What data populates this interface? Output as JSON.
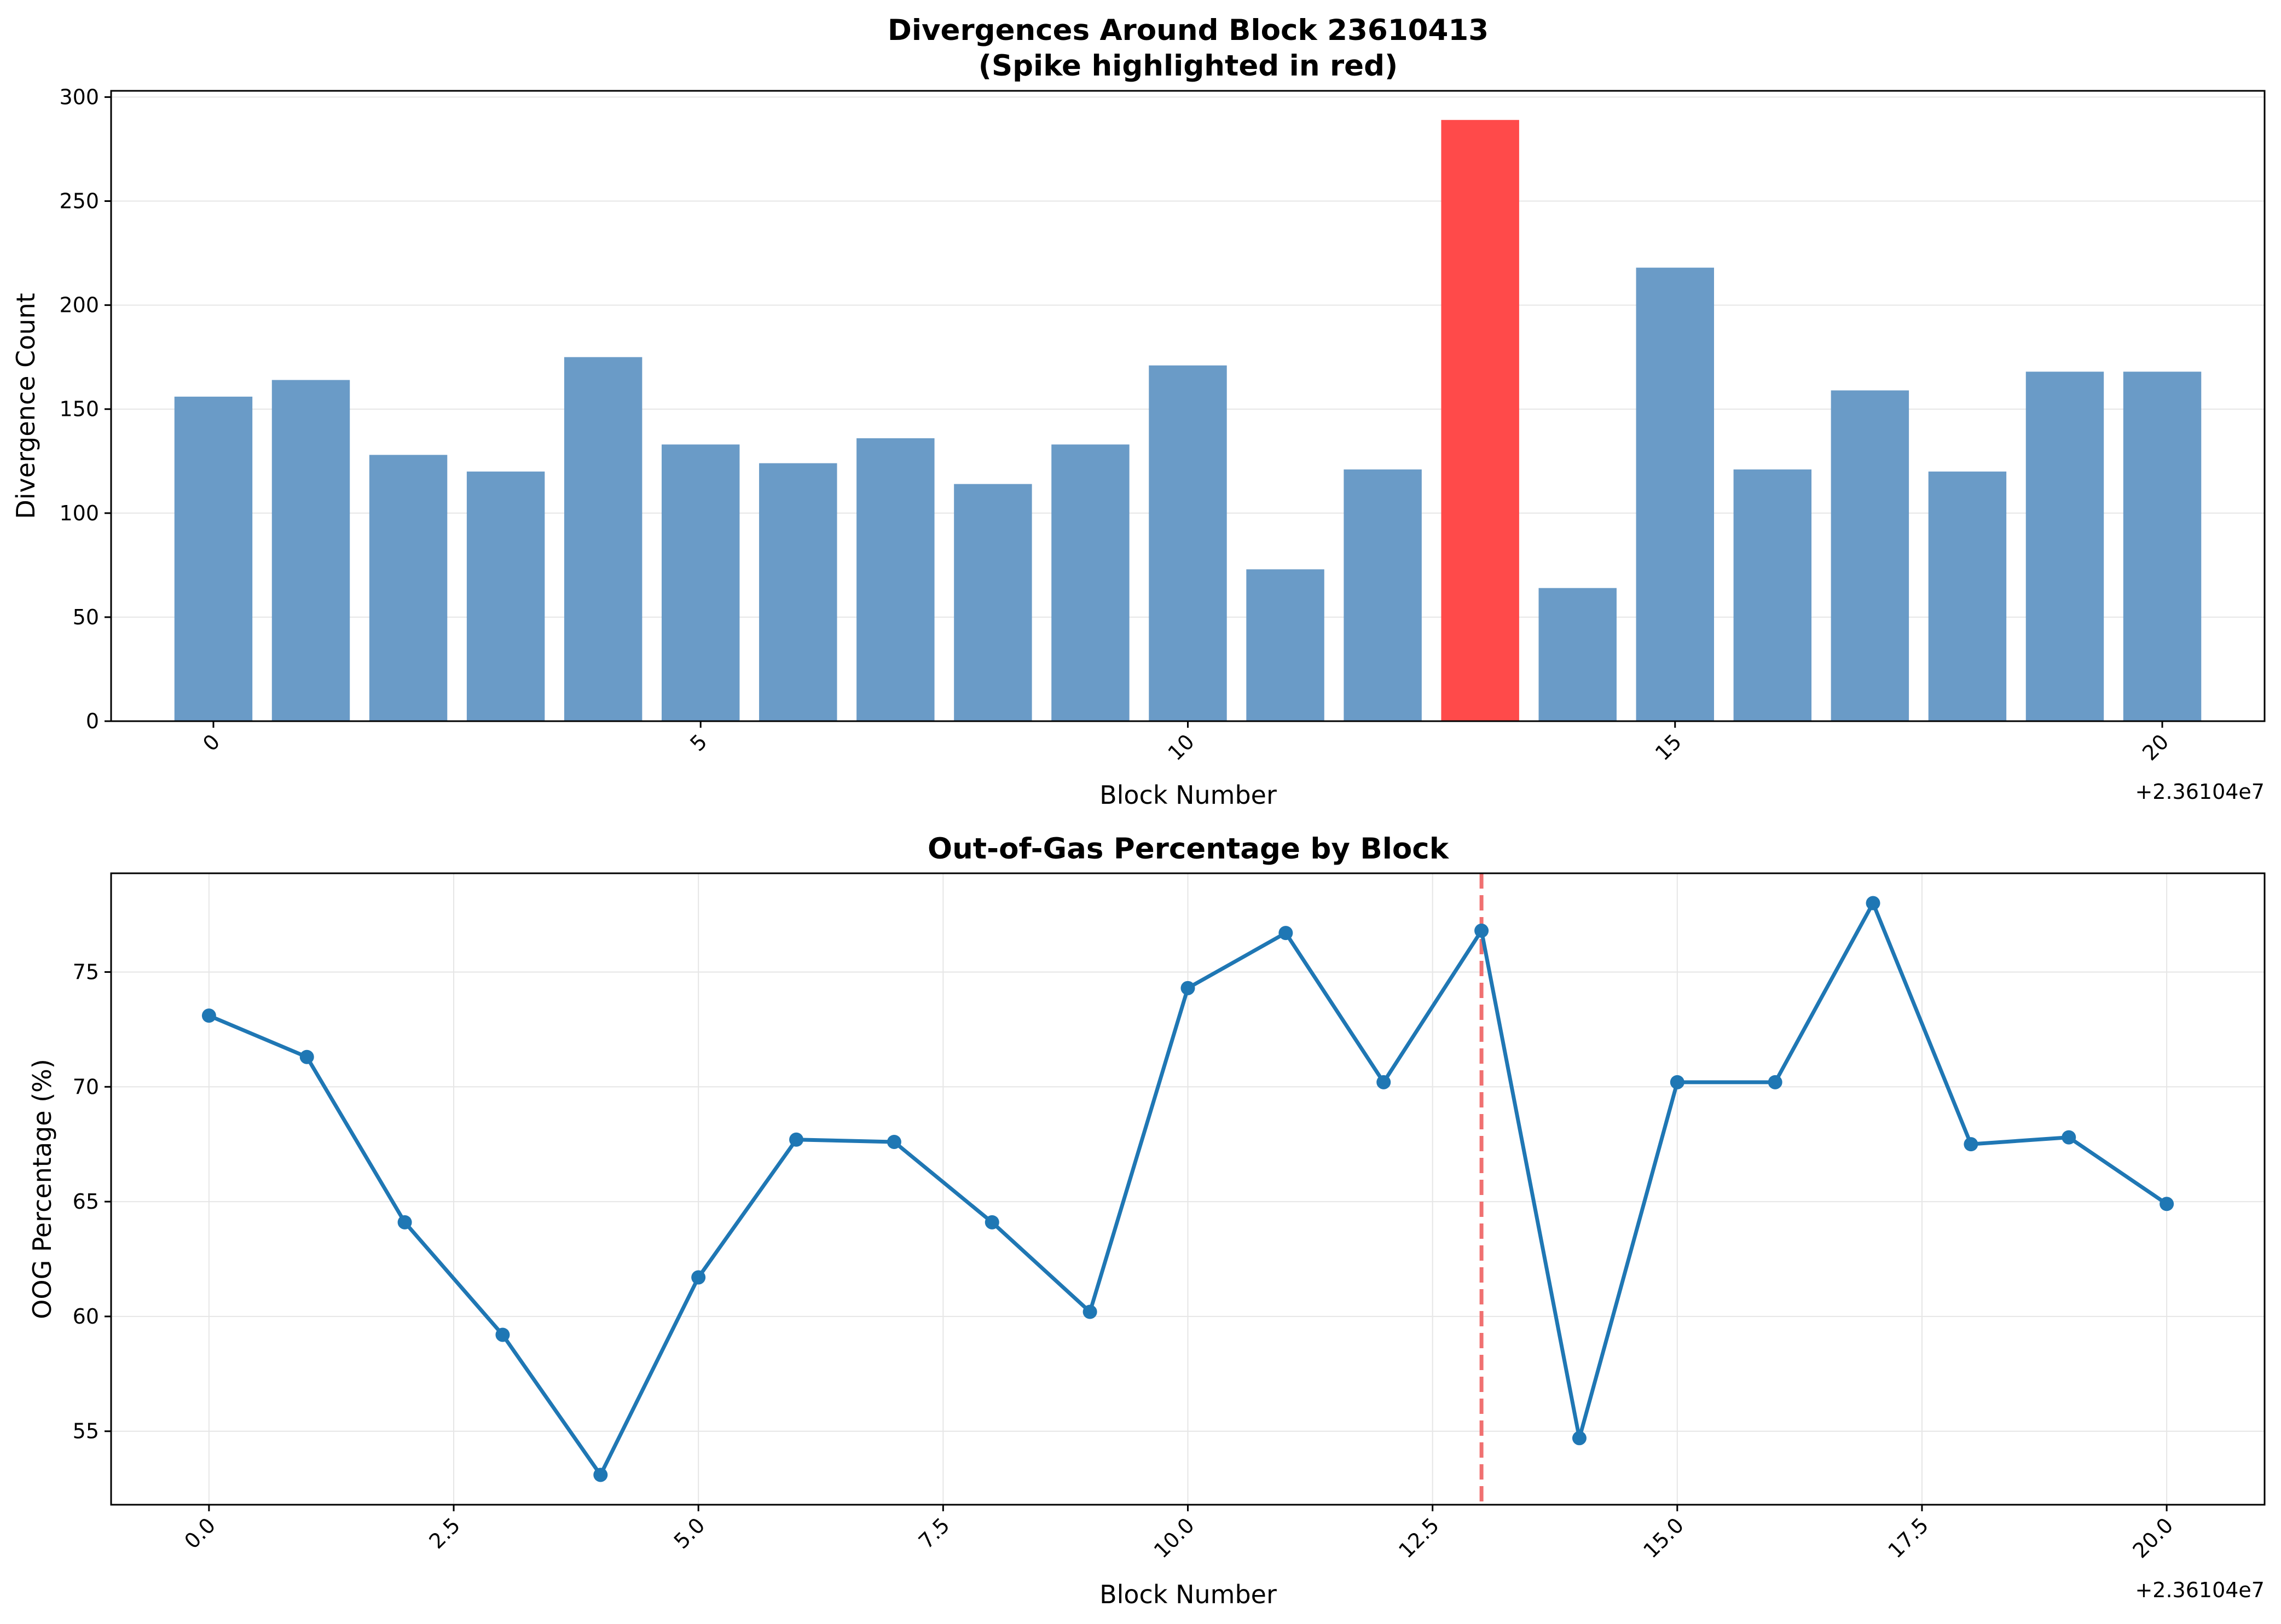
{
  "chart_data": [
    {
      "type": "bar",
      "title": "Divergences Around Block 23610413",
      "subtitle": "(Spike highlighted in red)",
      "xlabel": "Block Number",
      "ylabel": "Divergence Count",
      "x_offset_label": "+2.36104e7",
      "x": [
        0,
        1,
        2,
        3,
        4,
        5,
        6,
        7,
        8,
        9,
        10,
        11,
        12,
        13,
        14,
        15,
        16,
        17,
        18,
        19,
        20
      ],
      "values": [
        156,
        164,
        128,
        120,
        175,
        133,
        124,
        136,
        114,
        133,
        171,
        73,
        121,
        289,
        64,
        218,
        121,
        159,
        120,
        168,
        168
      ],
      "highlight_index": 13,
      "bar_color": "#6a9bc7",
      "highlight_color": "#ff4a4a",
      "xticks": [
        0,
        5,
        10,
        15,
        20
      ],
      "xtick_labels": [
        "0",
        "5",
        "10",
        "15",
        "20"
      ],
      "yticks": [
        0,
        50,
        100,
        150,
        200,
        250,
        300
      ],
      "ytick_labels": [
        "0",
        "50",
        "100",
        "150",
        "200",
        "250",
        "300"
      ],
      "xlim": [
        -1.05,
        21.05
      ],
      "ylim": [
        0,
        303
      ],
      "grid": "y"
    },
    {
      "type": "line",
      "title": "Out-of-Gas Percentage by Block",
      "xlabel": "Block Number",
      "ylabel": "OOG Percentage (%)",
      "x_offset_label": "+2.36104e7",
      "x": [
        0,
        1,
        2,
        3,
        4,
        5,
        6,
        7,
        8,
        9,
        10,
        11,
        12,
        13,
        14,
        15,
        16,
        17,
        18,
        19,
        20
      ],
      "values": [
        73.1,
        71.3,
        64.1,
        59.2,
        53.1,
        61.7,
        67.7,
        67.6,
        64.1,
        60.2,
        74.3,
        76.7,
        70.2,
        76.8,
        54.7,
        70.2,
        70.2,
        78.0,
        67.5,
        67.8,
        64.9
      ],
      "line_color": "#1f77b4",
      "vline_x": 13,
      "vline_color": "#f07070",
      "xticks": [
        0,
        2.5,
        5,
        7.5,
        10,
        12.5,
        15,
        17.5,
        20
      ],
      "xtick_labels": [
        "0.0",
        "2.5",
        "5.0",
        "7.5",
        "10.0",
        "12.5",
        "15.0",
        "17.5",
        "20.0"
      ],
      "yticks": [
        55,
        60,
        65,
        70,
        75
      ],
      "ytick_labels": [
        "55",
        "60",
        "65",
        "70",
        "75"
      ],
      "xlim": [
        -1.0,
        21.0
      ],
      "ylim": [
        51.8,
        79.3
      ],
      "grid": "both"
    }
  ]
}
